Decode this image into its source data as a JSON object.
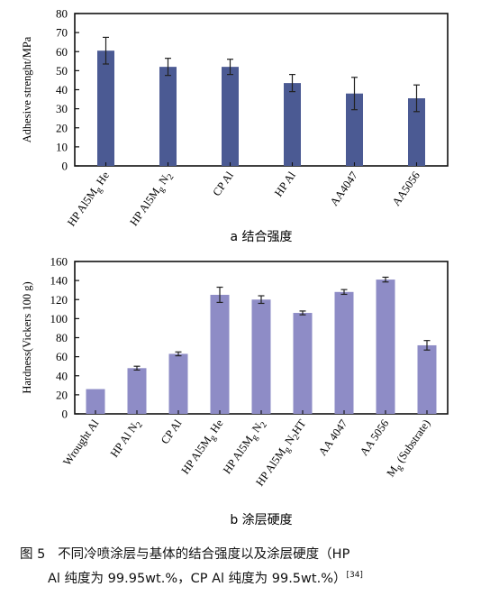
{
  "chart_data": [
    {
      "type": "bar",
      "subtitle": "a  结合强度",
      "ylabel": "Adhesive strenght/MPa",
      "ylim": [
        0,
        80
      ],
      "yticks": [
        0,
        10,
        20,
        30,
        40,
        50,
        60,
        70,
        80
      ],
      "grid": false,
      "bar_color": "#4b5a93",
      "categories": [
        {
          "label": "HP Al5Mg He",
          "parts": [
            [
              "HP Al5M",
              0
            ],
            [
              "g",
              1
            ],
            [
              " He",
              0
            ]
          ]
        },
        {
          "label": "HP Al5Mg N2",
          "parts": [
            [
              "HP Al5M",
              0
            ],
            [
              "g",
              1
            ],
            [
              " N",
              0
            ],
            [
              "2",
              1
            ]
          ]
        },
        {
          "label": "CP Al",
          "parts": [
            [
              "CP Al",
              0
            ]
          ]
        },
        {
          "label": "HP Al",
          "parts": [
            [
              "HP Al",
              0
            ]
          ]
        },
        {
          "label": "AA4047",
          "parts": [
            [
              "AA4047",
              0
            ]
          ]
        },
        {
          "label": "AA5056",
          "parts": [
            [
              "AA5056",
              0
            ]
          ]
        }
      ],
      "values": [
        60.5,
        52,
        52,
        43.5,
        38,
        35.5
      ],
      "errors": [
        7,
        4.5,
        4,
        4.5,
        8.5,
        7
      ]
    },
    {
      "type": "bar",
      "subtitle": "b  涂层硬度",
      "ylabel": "Hardness(Vickers 100 g)",
      "ylim": [
        0,
        160
      ],
      "yticks": [
        0,
        20,
        40,
        60,
        80,
        100,
        120,
        140,
        160
      ],
      "grid": false,
      "bar_color": "#8e8cc6",
      "categories": [
        {
          "label": "Wrought Al",
          "parts": [
            [
              "Wrought Al",
              0
            ]
          ]
        },
        {
          "label": "HP Al N2",
          "parts": [
            [
              "HP Al N",
              0
            ],
            [
              "2",
              1
            ]
          ]
        },
        {
          "label": "CP Al",
          "parts": [
            [
              "CP Al",
              0
            ]
          ]
        },
        {
          "label": "HP Al5Mg He",
          "parts": [
            [
              "HP Al5M",
              0
            ],
            [
              "g",
              1
            ],
            [
              " He",
              0
            ]
          ]
        },
        {
          "label": "HP Al5Mg N2",
          "parts": [
            [
              "HP Al5M",
              0
            ],
            [
              "g",
              1
            ],
            [
              " N",
              0
            ],
            [
              "2",
              1
            ]
          ]
        },
        {
          "label": "HP Al5Mg N2HT",
          "parts": [
            [
              "HP Al5M",
              0
            ],
            [
              "g",
              1
            ],
            [
              " N",
              0
            ],
            [
              "2",
              1
            ],
            [
              "HT",
              0
            ]
          ]
        },
        {
          "label": "AA 4047",
          "parts": [
            [
              "AA 4047",
              0
            ]
          ]
        },
        {
          "label": "AA 5056",
          "parts": [
            [
              "AA 5056",
              0
            ]
          ]
        },
        {
          "label": "Mg (Substrate)",
          "parts": [
            [
              "M",
              0
            ],
            [
              "g",
              1
            ],
            [
              " (Substrate)",
              0
            ]
          ]
        }
      ],
      "values": [
        26,
        48,
        63,
        125,
        120,
        106,
        128,
        141,
        72
      ],
      "errors": [
        0,
        2,
        2,
        8,
        4,
        2,
        2.5,
        2.5,
        5
      ]
    }
  ],
  "caption": {
    "fig_label": "图 5",
    "line1": "不同冷喷涂层与基体的结合强度以及涂层硬度（HP",
    "line2": "Al 纯度为 99.95wt.%，CP Al 纯度为 99.5wt.%）",
    "ref": "[34]"
  }
}
